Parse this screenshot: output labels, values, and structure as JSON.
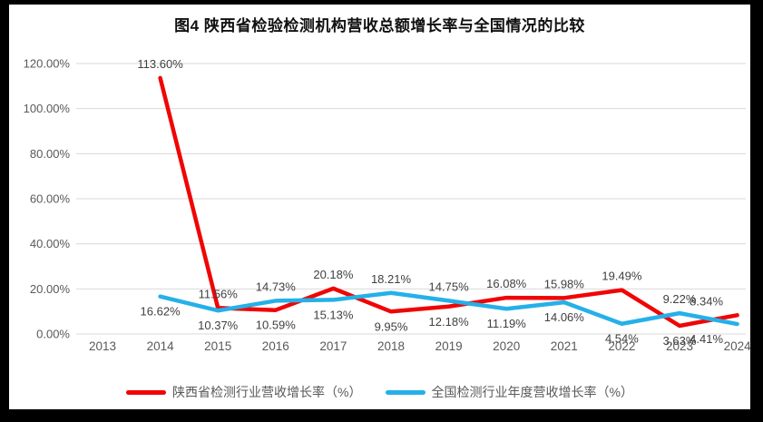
{
  "title": "图4 陕西省检验检测机构营收总额增长率与全国情况的比较",
  "colors": {
    "frame_bg": "#000000",
    "canvas_bg": "#ffffff",
    "gridline": "#d9d9d9",
    "axis_text": "#595959",
    "data_label_text": "#404040",
    "series_shaanxi": "#f00505",
    "series_national": "#25b0e8"
  },
  "chart_data": {
    "type": "line",
    "title": "图4 陕西省检验检测机构营收总额增长率与全国情况的比较",
    "categories": [
      "2013",
      "2014",
      "2015",
      "2016",
      "2017",
      "2018",
      "2019",
      "2020",
      "2021",
      "2022",
      "2023",
      "2024"
    ],
    "series": [
      {
        "name": "陕西省检测行业营收增长率（%）",
        "color": "#f00505",
        "values": [
          null,
          113.6,
          11.56,
          10.59,
          20.18,
          9.95,
          12.18,
          16.08,
          15.98,
          19.49,
          3.63,
          8.34
        ]
      },
      {
        "name": "全国检测行业年度营收增长率（%）",
        "color": "#25b0e8",
        "values": [
          null,
          16.62,
          10.37,
          14.73,
          15.13,
          18.21,
          14.75,
          11.19,
          14.06,
          4.54,
          9.22,
          4.41
        ]
      }
    ],
    "xlabel": "",
    "ylabel": "",
    "ylim": [
      0,
      120
    ],
    "y_ticks": [
      "0.00%",
      "20.00%",
      "40.00%",
      "60.00%",
      "80.00%",
      "100.00%",
      "120.00%"
    ],
    "grid": true,
    "legend_position": "bottom",
    "data_labels": true
  }
}
